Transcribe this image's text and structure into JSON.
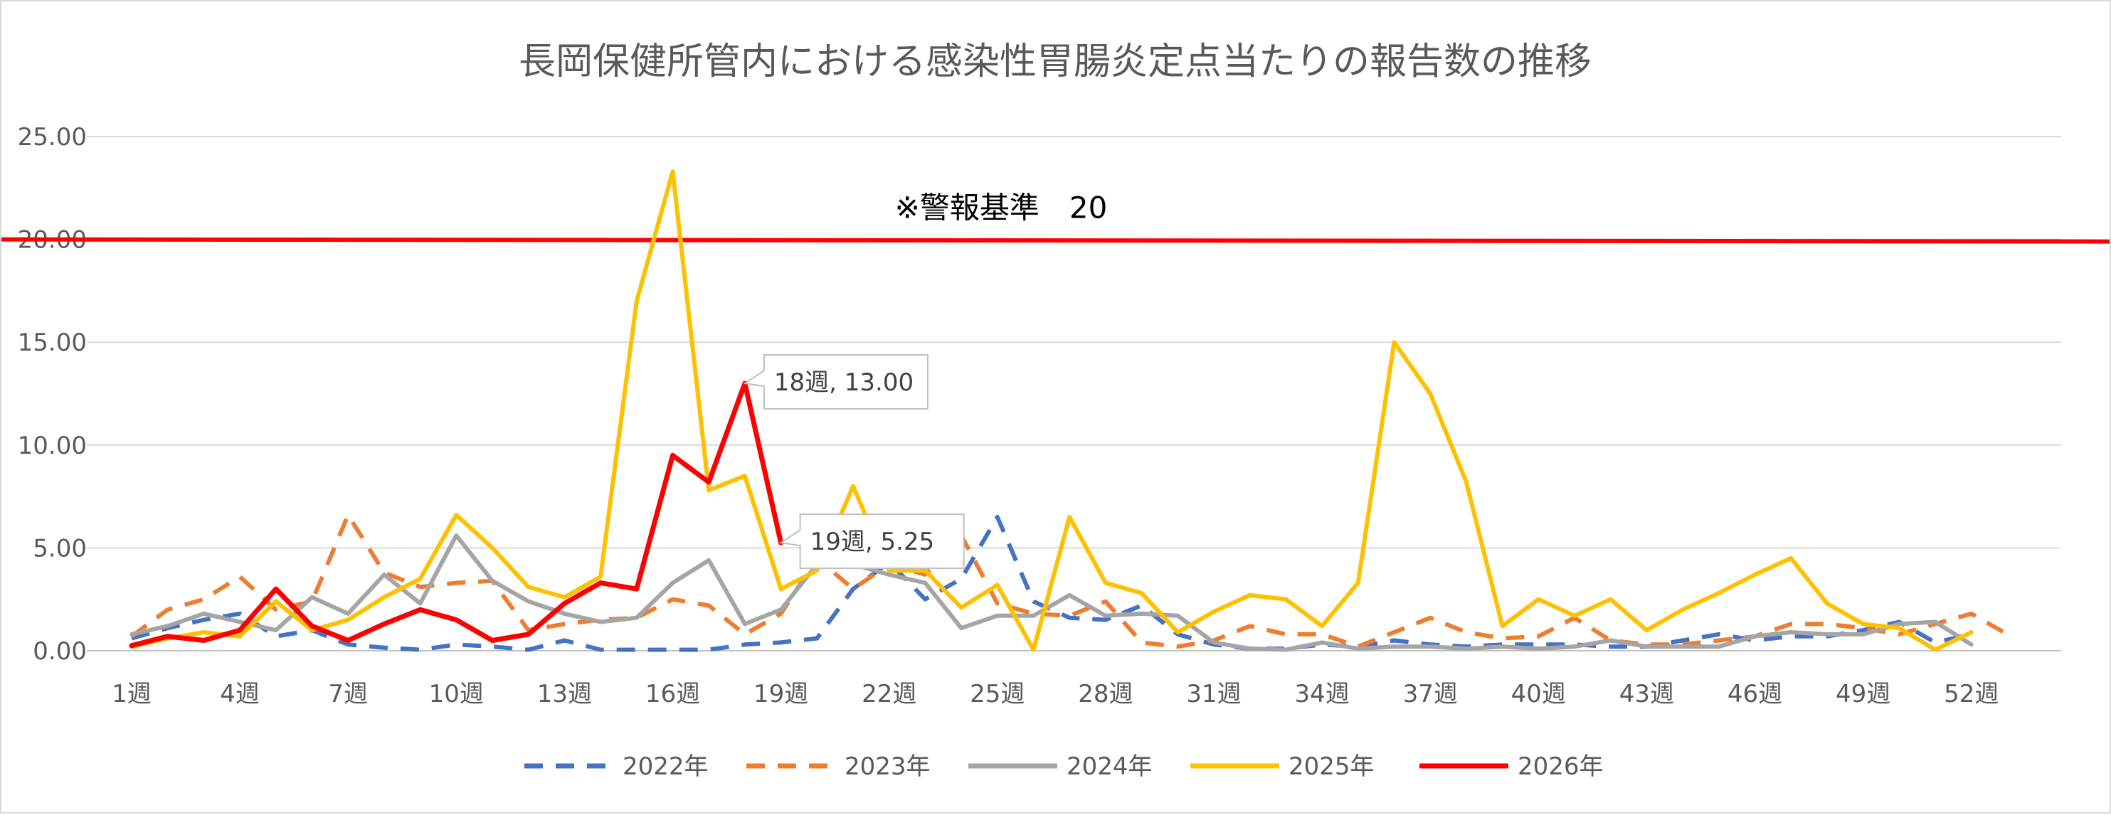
{
  "chart_data": {
    "type": "line",
    "title": "長岡保健所管内における感染性胃腸炎定点当たりの報告数の推移",
    "xlabel": "",
    "ylabel": "",
    "ylim": [
      0,
      25
    ],
    "yticks": [
      "0.00",
      "5.00",
      "10.00",
      "15.00",
      "20.00",
      "25.00"
    ],
    "week_count": 53,
    "xtick_labels": [
      "1週",
      "4週",
      "7週",
      "10週",
      "13週",
      "16週",
      "19週",
      "22週",
      "25週",
      "28週",
      "31週",
      "34週",
      "37週",
      "40週",
      "43週",
      "46週",
      "49週",
      "52週"
    ],
    "grid": true,
    "legend_position": "bottom",
    "threshold": {
      "label": "※警報基準　20",
      "value": 20,
      "color": "#ff0000"
    },
    "annotations": [
      {
        "label": "18週, 13.00",
        "week": 18,
        "value": 13.0
      },
      {
        "label": "19週, 5.25",
        "week": 19,
        "value": 5.25
      }
    ],
    "series": [
      {
        "name": "2022年",
        "color": "#4472c4",
        "dash": "dashed",
        "values": [
          0.6,
          1.1,
          1.5,
          1.8,
          0.7,
          1.0,
          0.3,
          0.15,
          0.05,
          0.3,
          0.2,
          0.05,
          0.5,
          0.05,
          0.05,
          0.05,
          0.05,
          0.3,
          0.4,
          0.6,
          3.0,
          4.3,
          2.5,
          3.5,
          6.5,
          2.4,
          1.6,
          1.5,
          2.2,
          0.8,
          0.3,
          0.1,
          0.1,
          0.3,
          0.2,
          0.5,
          0.3,
          0.2,
          0.3,
          0.3,
          0.3,
          0.2,
          0.2,
          0.5,
          0.8,
          0.5,
          0.7,
          0.7,
          1.0,
          1.4,
          0.4,
          0.8,
          null
        ]
      },
      {
        "name": "2023年",
        "color": "#ed7d31",
        "dash": "dashed",
        "values": [
          0.7,
          2.0,
          2.5,
          3.6,
          2.0,
          2.4,
          6.6,
          3.8,
          3.1,
          3.3,
          3.4,
          1.0,
          1.3,
          1.5,
          1.6,
          2.5,
          2.2,
          0.8,
          1.8,
          4.5,
          3.0,
          4.2,
          3.7,
          5.6,
          2.3,
          1.8,
          1.7,
          2.4,
          0.4,
          0.2,
          0.5,
          1.2,
          0.8,
          0.8,
          0.2,
          0.9,
          1.6,
          0.9,
          0.6,
          0.7,
          1.6,
          0.5,
          0.3,
          0.3,
          0.5,
          0.7,
          1.3,
          1.3,
          1.1,
          0.8,
          1.3,
          1.8,
          0.8
        ]
      },
      {
        "name": "2024年",
        "color": "#a5a5a5",
        "dash": "solid",
        "values": [
          0.8,
          1.2,
          1.8,
          1.4,
          1.0,
          2.6,
          1.8,
          3.7,
          2.3,
          5.6,
          3.4,
          2.4,
          1.8,
          1.4,
          1.6,
          3.3,
          4.4,
          1.3,
          2.0,
          4.2,
          4.2,
          3.7,
          3.3,
          1.1,
          1.7,
          1.7,
          2.7,
          1.7,
          1.8,
          1.7,
          0.4,
          0.1,
          0.05,
          0.4,
          0.1,
          0.2,
          0.2,
          0.1,
          0.2,
          0.1,
          0.2,
          0.5,
          0.2,
          0.2,
          0.2,
          0.7,
          0.9,
          0.8,
          0.8,
          1.3,
          1.4,
          0.3,
          null
        ]
      },
      {
        "name": "2025年",
        "color": "#ffc000",
        "dash": "solid",
        "values": [
          0.2,
          0.6,
          0.9,
          0.7,
          2.4,
          1.0,
          1.5,
          2.6,
          3.5,
          6.6,
          5.0,
          3.1,
          2.6,
          3.6,
          17.0,
          23.3,
          7.8,
          8.5,
          3.0,
          3.9,
          8.0,
          3.9,
          3.9,
          2.1,
          3.2,
          0.05,
          6.5,
          3.3,
          2.8,
          0.9,
          1.9,
          2.7,
          2.5,
          1.2,
          3.3,
          15.0,
          12.5,
          8.2,
          1.2,
          2.5,
          1.7,
          2.5,
          1.0,
          2.0,
          2.8,
          3.7,
          4.5,
          2.3,
          1.3,
          1.1,
          0.05,
          0.9,
          null
        ]
      },
      {
        "name": "2026年",
        "color": "#ff0000",
        "dash": "solid",
        "values": [
          0.25,
          0.7,
          0.5,
          1.0,
          3.0,
          1.2,
          0.5,
          1.3,
          2.0,
          1.5,
          0.5,
          0.8,
          2.3,
          3.3,
          3.0,
          9.5,
          8.2,
          13.0,
          5.25
        ]
      }
    ]
  }
}
